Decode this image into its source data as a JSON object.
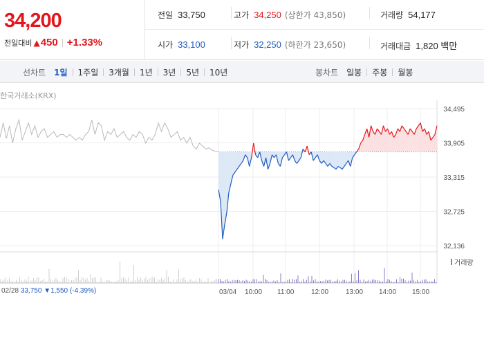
{
  "summary": {
    "price": "34,200",
    "change_label": "전일대비",
    "change_arrow": "▲",
    "change_value": "450",
    "change_pct": "+1.33%",
    "prev_close": {
      "label": "전일",
      "value": "33,750"
    },
    "high": {
      "label": "고가",
      "value": "34,250",
      "sub": "(상한가 43,850)"
    },
    "volume": {
      "label": "거래량",
      "value": "54,177"
    },
    "open": {
      "label": "시가",
      "value": "33,100"
    },
    "low": {
      "label": "저가",
      "value": "32,250",
      "sub": "(하한가 23,650)"
    },
    "turnover": {
      "label": "거래대금",
      "value": "1,820 백만"
    }
  },
  "tabs": {
    "line_label": "선차트",
    "line_tabs": [
      "1일",
      "1주일",
      "3개월",
      "1년",
      "3년",
      "5년",
      "10년"
    ],
    "line_active": "1일",
    "candle_label": "봉차트",
    "candle_tabs": [
      "일봉",
      "주봉",
      "월봉"
    ]
  },
  "chart": {
    "exchange": "한국거래소(KRX)",
    "volume_legend": "거래량",
    "prev_day_info": {
      "date": "02/28",
      "close": "33,750",
      "arrow": "▼",
      "change": "1,550",
      "pct": "(-4.39%)"
    },
    "colors": {
      "up": "#e4161b",
      "down": "#1d5bbf",
      "prev_day": "#b9b9b9",
      "up_fill": "#fbe0e1",
      "down_fill": "#dce8f6",
      "volume": "#8a7cc7"
    }
  },
  "chart_data": {
    "type": "line",
    "y_ticks": [
      "34,495",
      "33,905",
      "33,315",
      "32,725",
      "32,136"
    ],
    "ylim": [
      32136,
      34495
    ],
    "x_ticks": [
      "03/04",
      "10:00",
      "11:00",
      "12:00",
      "13:00",
      "14:00",
      "15:00"
    ],
    "baseline": 33750,
    "prev_day_series": {
      "date": "02/28",
      "values": [
        34000,
        34250,
        33980,
        34200,
        33900,
        34150,
        34300,
        33950,
        34100,
        34250,
        34050,
        34200,
        34000,
        34100,
        34150,
        34000,
        34050,
        34100,
        34000,
        34050,
        34050,
        34000,
        34050,
        34000,
        33950,
        34000,
        33950,
        34050,
        34100,
        34300,
        34050,
        34250,
        34200,
        33950,
        34100,
        34050,
        34150,
        34000,
        34050,
        34100,
        34000,
        33950,
        34050,
        34000,
        34100,
        34050,
        33900,
        34000,
        33950,
        34050,
        34250,
        34100,
        34250,
        34150,
        34000,
        34050,
        34100,
        33950,
        34000,
        33900,
        34000,
        33850,
        33800,
        33900,
        33850,
        33800,
        33820,
        33780,
        33760,
        33750
      ]
    },
    "today_series": {
      "date": "03/04",
      "start_time": "09:00",
      "end_time": "15:30",
      "values": [
        33100,
        32900,
        32250,
        32500,
        32700,
        33050,
        33200,
        33350,
        33400,
        33450,
        33500,
        33550,
        33600,
        33700,
        33650,
        33500,
        33650,
        33900,
        33700,
        33650,
        33750,
        33600,
        33500,
        33650,
        33450,
        33550,
        33700,
        33650,
        33700,
        33550,
        33500,
        33650,
        33700,
        33750,
        33600,
        33650,
        33700,
        33600,
        33550,
        33600,
        33650,
        33800,
        33750,
        33850,
        33700,
        33750,
        33600,
        33650,
        33700,
        33600,
        33550,
        33600,
        33550,
        33500,
        33550,
        33500,
        33480,
        33450,
        33500,
        33480,
        33450,
        33500,
        33550,
        33600,
        33500,
        33650,
        33700,
        33750,
        33800,
        33900,
        33950,
        34050,
        34150,
        34000,
        34200,
        34100,
        34050,
        34150,
        34100,
        34050,
        34200,
        34100,
        34150,
        34050,
        34100,
        34000,
        34050,
        34150,
        34100,
        34200,
        34150,
        34100,
        34050,
        34150,
        34100,
        34050,
        34150,
        34200,
        34250,
        34100,
        34150,
        34050,
        34100,
        33950,
        34000,
        34050,
        34200
      ]
    }
  }
}
